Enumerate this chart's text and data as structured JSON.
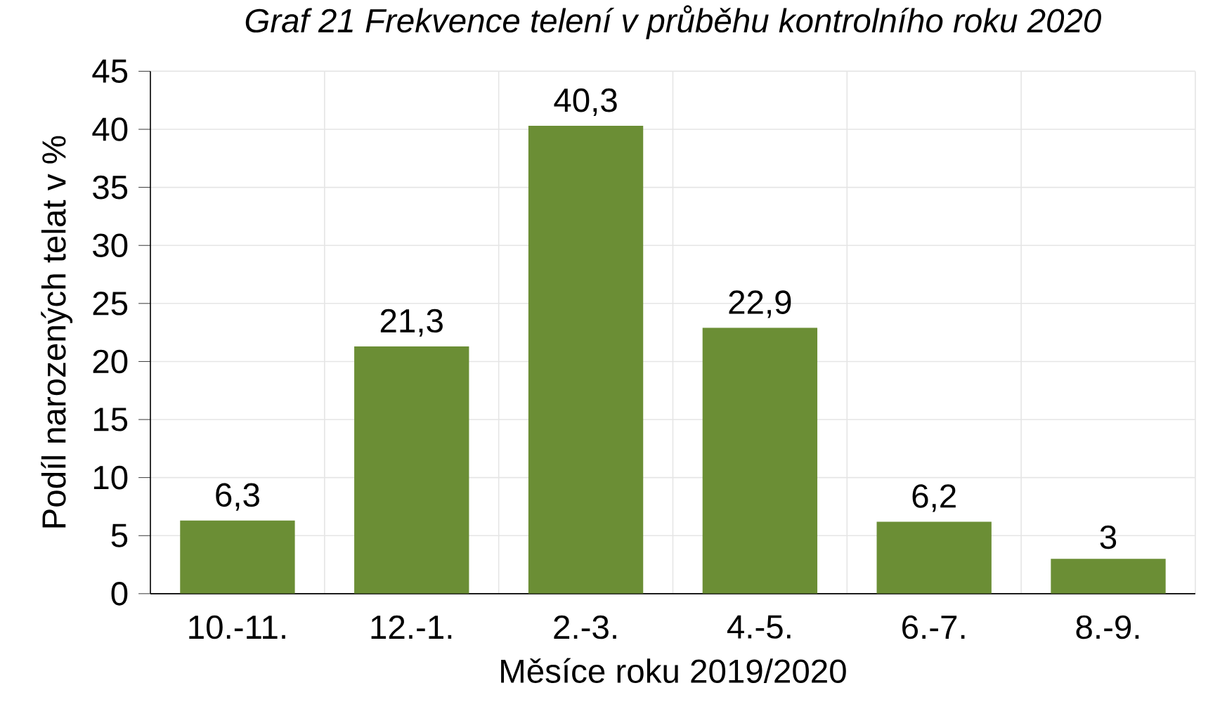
{
  "chart_data": {
    "type": "bar",
    "title": "Graf 21 Frekvence telení v průběhu kontrolního roku 2020",
    "xlabel": "Měsíce roku 2019/2020",
    "ylabel": "Podíl narozených telat v %",
    "categories": [
      "10.-11.",
      "12.-1.",
      "2.-3.",
      "4.-5.",
      "6.-7.",
      "8.-9."
    ],
    "values": [
      6.3,
      21.3,
      40.3,
      22.9,
      6.2,
      3
    ],
    "value_labels": [
      "6,3",
      "21,3",
      "40,3",
      "22,9",
      "6,2",
      "3"
    ],
    "color": "#6b8e35",
    "ylim": [
      0,
      45
    ],
    "yticks": [
      0,
      5,
      10,
      15,
      20,
      25,
      30,
      35,
      40,
      45
    ],
    "grid": true
  }
}
